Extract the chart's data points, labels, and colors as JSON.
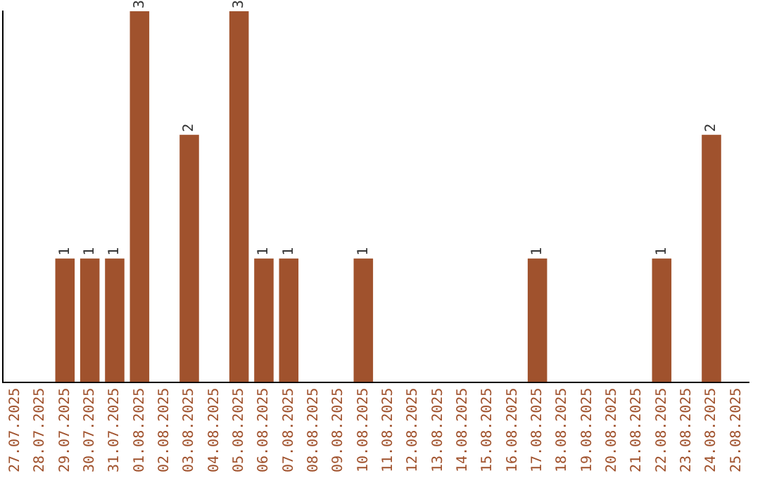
{
  "chart_data": {
    "type": "bar",
    "categories": [
      "27.07.2025",
      "28.07.2025",
      "29.07.2025",
      "30.07.2025",
      "31.07.2025",
      "01.08.2025",
      "02.08.2025",
      "03.08.2025",
      "04.08.2025",
      "05.08.2025",
      "06.08.2025",
      "07.08.2025",
      "08.08.2025",
      "09.08.2025",
      "10.08.2025",
      "11.08.2025",
      "12.08.2025",
      "13.08.2025",
      "14.08.2025",
      "15.08.2025",
      "16.08.2025",
      "17.08.2025",
      "18.08.2025",
      "19.08.2025",
      "20.08.2025",
      "21.08.2025",
      "22.08.2025",
      "23.08.2025",
      "24.08.2025",
      "25.08.2025"
    ],
    "values": [
      0,
      0,
      1,
      1,
      1,
      3,
      0,
      2,
      0,
      3,
      1,
      1,
      0,
      0,
      1,
      0,
      0,
      0,
      0,
      0,
      0,
      1,
      0,
      0,
      0,
      0,
      1,
      0,
      2,
      0
    ],
    "value_labels": [
      null,
      null,
      "1",
      "1",
      "1",
      "3",
      null,
      "2",
      null,
      "3",
      "1",
      "1",
      null,
      null,
      "1",
      null,
      null,
      null,
      null,
      null,
      null,
      "1",
      null,
      null,
      null,
      null,
      "1",
      null,
      "2",
      null
    ],
    "color": "#a0522d",
    "grid": false,
    "legend": false,
    "tick_labels": "x"
  }
}
